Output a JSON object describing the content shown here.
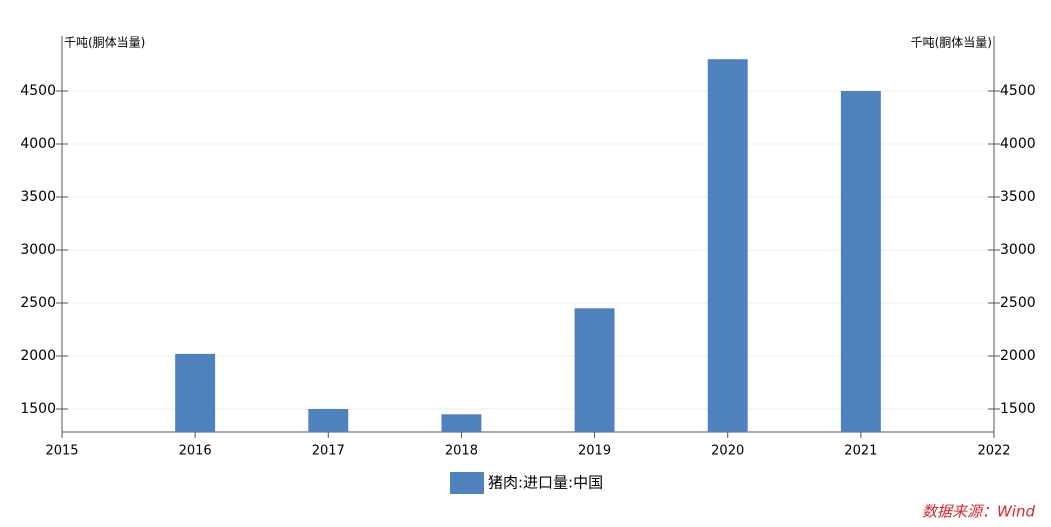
{
  "chart_data": {
    "type": "bar",
    "ylabel": "千吨(胴体当量)",
    "y2label": "千吨(胴体当量)",
    "x": [
      2016,
      2017,
      2018,
      2019,
      2020,
      2021
    ],
    "series": [
      {
        "name": "猪肉:进口量:中国",
        "color": "#4f81bd",
        "values": [
          2020,
          1500,
          1450,
          2450,
          4800,
          4500
        ]
      }
    ],
    "xlim": [
      2015,
      2022
    ],
    "xticks": [
      2015,
      2016,
      2017,
      2018,
      2019,
      2020,
      2021,
      2022
    ],
    "ylim": [
      1283,
      4953
    ],
    "yticks": [
      1500,
      2000,
      2500,
      3000,
      3500,
      4000,
      4500
    ],
    "y2lim": [
      1283,
      4953
    ],
    "y2ticks": [
      1500,
      2000,
      2500,
      3000,
      3500,
      4000,
      4500
    ],
    "grid": true,
    "legend": "bottom",
    "source": "数据来源：Wind"
  }
}
